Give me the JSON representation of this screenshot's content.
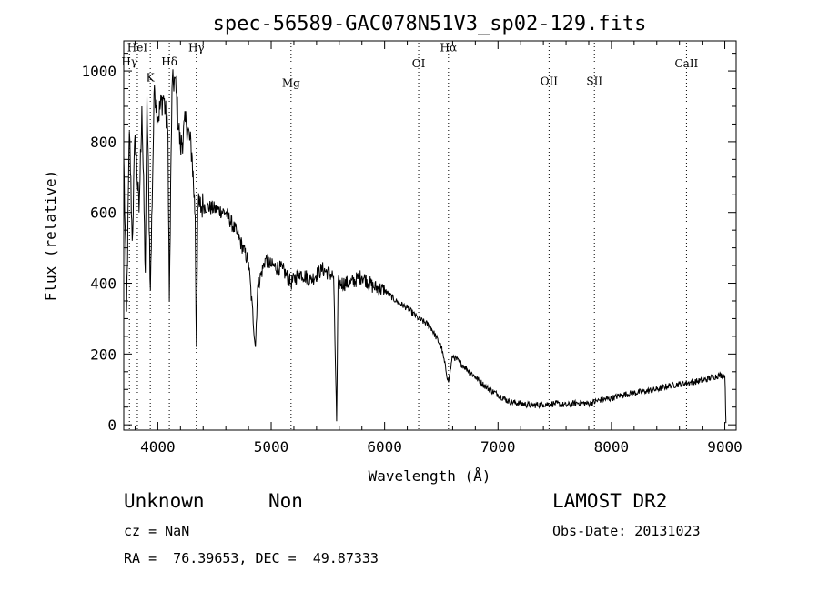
{
  "chart_data": {
    "type": "line",
    "title": "spec-56589-GAC078N51V3_sp02-129.fits",
    "xlabel": "Wavelength (Å)",
    "ylabel": "Flux (relative)",
    "xlim": [
      3700,
      9100
    ],
    "ylim": [
      -15,
      1085
    ],
    "xticks": [
      4000,
      5000,
      6000,
      7000,
      8000,
      9000
    ],
    "yticks": [
      0,
      200,
      400,
      600,
      800,
      1000
    ],
    "grid": false,
    "line_color": "#000000",
    "lines": [
      {
        "label": "Hγ",
        "x": 3750,
        "label_y": 1015
      },
      {
        "label": "HeI",
        "x": 3820,
        "label_y": 1055
      },
      {
        "label": "K",
        "x": 3934,
        "label_y": 970
      },
      {
        "label": "Hδ",
        "x": 4102,
        "label_y": 1015
      },
      {
        "label": "Hγ",
        "x": 4340,
        "label_y": 1055
      },
      {
        "label": "Mg",
        "x": 5175,
        "label_y": 955
      },
      {
        "label": "OI",
        "x": 6300,
        "label_y": 1010
      },
      {
        "label": "Hα",
        "x": 6563,
        "label_y": 1055
      },
      {
        "label": "OII",
        "x": 7450,
        "label_y": 960
      },
      {
        "label": "SII",
        "x": 7850,
        "label_y": 960
      },
      {
        "label": "CaII",
        "x": 8662,
        "label_y": 1010
      }
    ],
    "spectrum_outline": [
      [
        3700,
        760
      ],
      [
        3725,
        320
      ],
      [
        3750,
        830
      ],
      [
        3775,
        520
      ],
      [
        3800,
        820
      ],
      [
        3835,
        600
      ],
      [
        3860,
        900
      ],
      [
        3890,
        430
      ],
      [
        3905,
        930
      ],
      [
        3935,
        380
      ],
      [
        3970,
        960
      ],
      [
        4000,
        870
      ],
      [
        4050,
        930
      ],
      [
        4090,
        820
      ],
      [
        4102,
        350
      ],
      [
        4125,
        950
      ],
      [
        4150,
        980
      ],
      [
        4200,
        780
      ],
      [
        4250,
        860
      ],
      [
        4300,
        770
      ],
      [
        4330,
        590
      ],
      [
        4340,
        220
      ],
      [
        4352,
        610
      ],
      [
        4400,
        620
      ],
      [
        4500,
        610
      ],
      [
        4600,
        600
      ],
      [
        4700,
        540
      ],
      [
        4800,
        460
      ],
      [
        4861,
        220
      ],
      [
        4880,
        390
      ],
      [
        4950,
        470
      ],
      [
        5000,
        450
      ],
      [
        5100,
        440
      ],
      [
        5175,
        400
      ],
      [
        5250,
        430
      ],
      [
        5350,
        410
      ],
      [
        5450,
        440
      ],
      [
        5550,
        420
      ],
      [
        5577,
        10
      ],
      [
        5590,
        400
      ],
      [
        5700,
        400
      ],
      [
        5800,
        420
      ],
      [
        5900,
        390
      ],
      [
        6000,
        380
      ],
      [
        6100,
        350
      ],
      [
        6200,
        330
      ],
      [
        6300,
        300
      ],
      [
        6400,
        280
      ],
      [
        6500,
        220
      ],
      [
        6563,
        120
      ],
      [
        6600,
        195
      ],
      [
        6700,
        165
      ],
      [
        6800,
        135
      ],
      [
        6900,
        105
      ],
      [
        7000,
        85
      ],
      [
        7100,
        65
      ],
      [
        7200,
        60
      ],
      [
        7300,
        55
      ],
      [
        7400,
        58
      ],
      [
        7500,
        60
      ],
      [
        7600,
        55
      ],
      [
        7700,
        62
      ],
      [
        7800,
        60
      ],
      [
        7900,
        70
      ],
      [
        8000,
        75
      ],
      [
        8100,
        85
      ],
      [
        8200,
        90
      ],
      [
        8300,
        95
      ],
      [
        8400,
        100
      ],
      [
        8500,
        110
      ],
      [
        8600,
        115
      ],
      [
        8700,
        120
      ],
      [
        8800,
        125
      ],
      [
        8900,
        135
      ],
      [
        8950,
        140
      ],
      [
        9000,
        140
      ],
      [
        9010,
        5
      ]
    ]
  },
  "footer": {
    "object_class": "Unknown",
    "object_subclass": "Non",
    "survey": "LAMOST DR2",
    "cz": "cz = NaN",
    "obs_date": "Obs-Date: 20131023",
    "coords": "RA =  76.39653, DEC =  49.87333"
  }
}
